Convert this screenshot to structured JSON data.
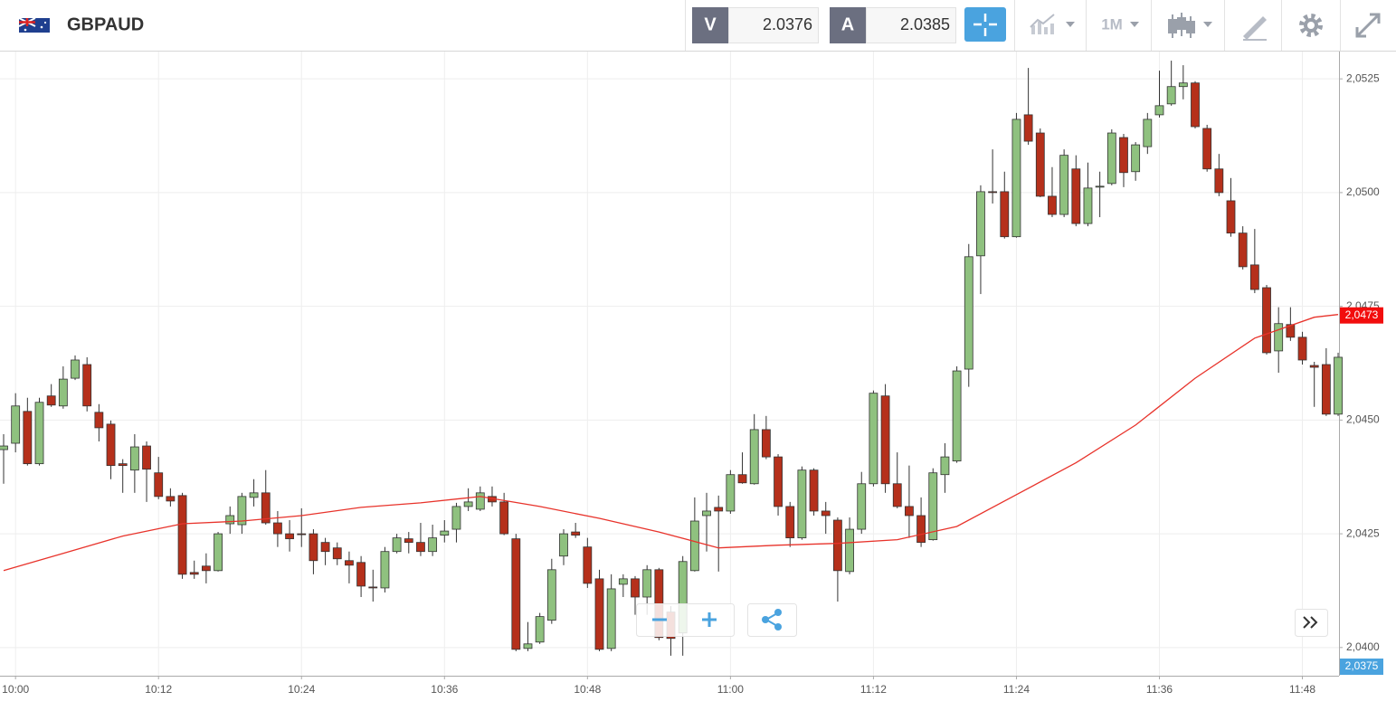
{
  "header": {
    "symbol": "GBPAUD",
    "bid_label": "V",
    "bid": "2.0376",
    "ask_label": "A",
    "ask": "2.0385",
    "timeframe": "1M"
  },
  "chart_data": {
    "type": "candlestick",
    "grid": true,
    "up_color": "#8fc17f",
    "down_color": "#b5301b",
    "x": [
      "09:59",
      "10:00",
      "10:01",
      "10:02",
      "10:03",
      "10:04",
      "10:05",
      "10:06",
      "10:07",
      "10:08",
      "10:09",
      "10:10",
      "10:11",
      "10:12",
      "10:13",
      "10:14",
      "10:15",
      "10:16",
      "10:17",
      "10:18",
      "10:19",
      "10:20",
      "10:21",
      "10:22",
      "10:23",
      "10:24",
      "10:25",
      "10:26",
      "10:27",
      "10:28",
      "10:29",
      "10:30",
      "10:31",
      "10:32",
      "10:33",
      "10:34",
      "10:35",
      "10:36",
      "10:37",
      "10:38",
      "10:39",
      "10:40",
      "10:41",
      "10:42",
      "10:43",
      "10:44",
      "10:45",
      "10:46",
      "10:47",
      "10:48",
      "10:49",
      "10:50",
      "10:51",
      "10:52",
      "10:53",
      "10:54",
      "10:55",
      "10:56",
      "10:57",
      "10:58",
      "10:59",
      "11:00",
      "11:01",
      "11:02",
      "11:03",
      "11:04",
      "11:05",
      "11:06",
      "11:07",
      "11:08",
      "11:09",
      "11:10",
      "11:11",
      "11:12",
      "11:13",
      "11:14",
      "11:15",
      "11:16",
      "11:17",
      "11:18",
      "11:19",
      "11:20",
      "11:21",
      "11:22",
      "11:23",
      "11:24",
      "11:25",
      "11:26",
      "11:27",
      "11:28",
      "11:29",
      "11:30",
      "11:31",
      "11:32",
      "11:33",
      "11:34",
      "11:35",
      "11:36",
      "11:37",
      "11:38",
      "11:39",
      "11:40",
      "11:41",
      "11:42",
      "11:43",
      "11:44",
      "11:45",
      "11:46",
      "11:47",
      "11:48",
      "11:49",
      "11:50",
      "11:51"
    ],
    "open": [
      2.04435,
      2.04449,
      2.04519,
      2.04404,
      2.04553,
      2.04531,
      2.04592,
      2.04622,
      2.04517,
      2.04491,
      2.04404,
      2.0439,
      2.04443,
      2.04384,
      2.04332,
      2.04334,
      2.04165,
      2.04179,
      2.04169,
      2.04272,
      2.0427,
      2.0433,
      2.0434,
      2.04274,
      2.0425,
      2.0425,
      2.0425,
      2.04231,
      2.04219,
      2.04191,
      2.04187,
      2.04133,
      2.04131,
      2.04211,
      2.04239,
      2.04231,
      2.04211,
      2.04247,
      2.0426,
      2.0431,
      2.04304,
      2.04332,
      2.0432,
      2.04239,
      2.03998,
      2.04012,
      2.0406,
      2.04201,
      2.04254,
      2.04221,
      2.04151,
      2.03998,
      2.04139,
      2.04151,
      2.04111,
      2.04171,
      2.04078,
      2.04032,
      2.04169,
      2.0429,
      2.04308,
      2.043,
      2.0438,
      2.0436,
      2.04479,
      2.04419,
      2.0431,
      2.04241,
      2.0439,
      2.043,
      2.0428,
      2.04167,
      2.0426,
      2.0436,
      2.04553,
      2.0436,
      2.0431,
      2.0429,
      2.04237,
      2.0438,
      2.0441,
      2.04612,
      2.04861,
      2.05002,
      2.05002,
      2.04903,
      2.05171,
      2.05131,
      2.04992,
      2.04952,
      2.05052,
      2.04932,
      2.05012,
      2.0502,
      2.05121,
      2.05046,
      2.05101,
      2.05171,
      2.05195,
      2.05233,
      2.05241,
      2.05141,
      2.05052,
      2.04982,
      2.04911,
      2.04841,
      2.04791,
      2.04652,
      2.0471,
      2.04682,
      2.0462,
      2.04622,
      2.04513
    ],
    "high": [
      2.04469,
      2.04559,
      2.04549,
      2.04549,
      2.04579,
      2.04618,
      2.04642,
      2.04638,
      2.04535,
      2.04499,
      2.04414,
      2.04469,
      2.04453,
      2.04419,
      2.0435,
      2.0434,
      2.04191,
      2.04207,
      2.04254,
      2.0431,
      2.0434,
      2.0437,
      2.0439,
      2.043,
      2.0428,
      2.04306,
      2.0426,
      2.04241,
      2.04231,
      2.04211,
      2.04201,
      2.04171,
      2.04221,
      2.0425,
      2.04254,
      2.04274,
      2.0427,
      2.0428,
      2.04318,
      2.0435,
      2.04354,
      2.04354,
      2.0434,
      2.0425,
      2.04056,
      2.04076,
      2.04195,
      2.0426,
      2.04274,
      2.04241,
      2.04171,
      2.04161,
      2.04161,
      2.04157,
      2.04181,
      2.04175,
      2.04091,
      2.04201,
      2.0433,
      2.0434,
      2.04334,
      2.0439,
      2.04429,
      2.04513,
      2.04509,
      2.04425,
      2.0432,
      2.04398,
      2.04394,
      2.0432,
      2.04286,
      2.04286,
      2.04386,
      2.04565,
      2.04579,
      2.04429,
      2.044,
      2.0433,
      2.04394,
      2.04449,
      2.04618,
      2.04887,
      2.05016,
      2.05095,
      2.05046,
      2.05175,
      2.05274,
      2.05141,
      2.05056,
      2.05095,
      2.05082,
      2.05066,
      2.05046,
      2.05139,
      2.05129,
      2.05111,
      2.05175,
      2.05268,
      2.0529,
      2.0528,
      2.05245,
      2.05149,
      2.05085,
      2.05032,
      2.04926,
      2.0492,
      2.04797,
      2.04748,
      2.04748,
      2.04694,
      2.04628,
      2.04658,
      2.04648
    ],
    "low": [
      2.0436,
      2.04429,
      2.044,
      2.044,
      2.04529,
      2.04525,
      2.04588,
      2.04519,
      2.04453,
      2.0437,
      2.0434,
      2.0434,
      2.0432,
      2.04326,
      2.0431,
      2.04151,
      2.04151,
      2.04141,
      2.04167,
      2.0425,
      2.0425,
      2.0431,
      2.0427,
      2.04221,
      2.04211,
      2.04221,
      2.04161,
      2.04181,
      2.04181,
      2.04141,
      2.04111,
      2.04101,
      2.04121,
      2.04207,
      2.04207,
      2.04201,
      2.04201,
      2.04231,
      2.04231,
      2.043,
      2.043,
      2.0431,
      2.04247,
      2.03992,
      2.03992,
      2.04008,
      2.04052,
      2.04181,
      2.04241,
      2.04131,
      2.03992,
      2.03992,
      2.04111,
      2.04072,
      2.04072,
      2.04016,
      2.03982,
      2.03982,
      2.04167,
      2.04211,
      2.04167,
      2.04294,
      2.0436,
      2.04358,
      2.04414,
      2.0429,
      2.04221,
      2.04237,
      2.0429,
      2.0425,
      2.04101,
      2.04161,
      2.0425,
      2.04354,
      2.0434,
      2.04306,
      2.04241,
      2.04221,
      2.04235,
      2.0434,
      2.04406,
      2.04573,
      2.04777,
      2.04976,
      2.04899,
      2.04901,
      2.05105,
      2.0499,
      2.04946,
      2.04946,
      2.04926,
      2.04926,
      2.04946,
      2.05016,
      2.05012,
      2.05026,
      2.05085,
      2.05165,
      2.05191,
      2.05205,
      2.05141,
      2.05046,
      2.04992,
      2.04903,
      2.04831,
      2.04779,
      2.04644,
      2.04604,
      2.04674,
      2.04622,
      2.04529,
      2.04509,
      2.04509
    ],
    "close": [
      2.04443,
      2.04531,
      2.04404,
      2.04539,
      2.04533,
      2.0459,
      2.04632,
      2.04531,
      2.04483,
      2.044,
      2.044,
      2.04441,
      2.04392,
      2.04332,
      2.04322,
      2.04161,
      2.04161,
      2.04169,
      2.0425,
      2.0429,
      2.04332,
      2.0434,
      2.04274,
      2.0425,
      2.04239,
      2.04249,
      2.04191,
      2.04211,
      2.04195,
      2.04181,
      2.04135,
      2.04131,
      2.04211,
      2.04241,
      2.04231,
      2.04211,
      2.04241,
      2.04256,
      2.0431,
      2.0432,
      2.0434,
      2.0432,
      2.0425,
      2.03996,
      2.04008,
      2.04068,
      2.04171,
      2.0425,
      2.04247,
      2.04141,
      2.03996,
      2.04129,
      2.04151,
      2.04111,
      2.04171,
      2.04022,
      2.0402,
      2.04189,
      2.04278,
      2.043,
      2.043,
      2.0438,
      2.04362,
      2.04479,
      2.04419,
      2.0431,
      2.04241,
      2.0439,
      2.043,
      2.0429,
      2.04169,
      2.0426,
      2.0436,
      2.04559,
      2.0436,
      2.0431,
      2.0429,
      2.04231,
      2.04384,
      2.04419,
      2.04608,
      2.04859,
      2.05002,
      2.05,
      2.04903,
      2.05161,
      2.05113,
      2.04992,
      2.04952,
      2.05082,
      2.04932,
      2.0501,
      2.05014,
      2.05131,
      2.05044,
      2.05105,
      2.05161,
      2.05191,
      2.05233,
      2.05241,
      2.05145,
      2.05052,
      2.05,
      2.04911,
      2.04837,
      2.04787,
      2.04648,
      2.04712,
      2.04682,
      2.04632,
      2.04616,
      2.04513,
      2.04638
    ],
    "moving_average": {
      "color": "#e8332b",
      "x": [
        "09:59",
        "10:04",
        "10:09",
        "10:14",
        "10:19",
        "10:24",
        "10:29",
        "10:34",
        "10:39",
        "10:44",
        "10:49",
        "10:54",
        "10:59",
        "11:04",
        "11:09",
        "11:14",
        "11:19",
        "11:24",
        "11:29",
        "11:34",
        "11:39",
        "11:44",
        "11:49",
        "11:51"
      ],
      "values": [
        2.04169,
        2.04207,
        2.04245,
        2.04272,
        2.04278,
        2.0429,
        2.04308,
        2.04318,
        2.04332,
        2.0431,
        2.04284,
        2.04254,
        2.04219,
        2.04225,
        2.04229,
        2.04237,
        2.04266,
        2.04336,
        2.04406,
        2.04489,
        2.04592,
        2.0468,
        2.04726,
        2.04732
      ]
    },
    "ylim": [
      2.03938,
      2.0531
    ],
    "yticks": [
      {
        "value": 2.04,
        "label": "2,0400"
      },
      {
        "value": 2.0425,
        "label": "2,0425"
      },
      {
        "value": 2.045,
        "label": "2,0450"
      },
      {
        "value": 2.0475,
        "label": "2,0475"
      },
      {
        "value": 2.05,
        "label": "2,0500"
      },
      {
        "value": 2.0525,
        "label": "2,0525"
      }
    ],
    "xticks": [
      "10:00",
      "10:12",
      "10:24",
      "10:36",
      "10:48",
      "11:00",
      "11:12",
      "11:24",
      "11:36",
      "11:48"
    ],
    "price_tags": [
      {
        "value": 2.0473,
        "label": "2,0473",
        "color": "#f20d0d"
      },
      {
        "value": 2.0375,
        "label": "2,0375",
        "color": "#4aa3df"
      }
    ]
  }
}
